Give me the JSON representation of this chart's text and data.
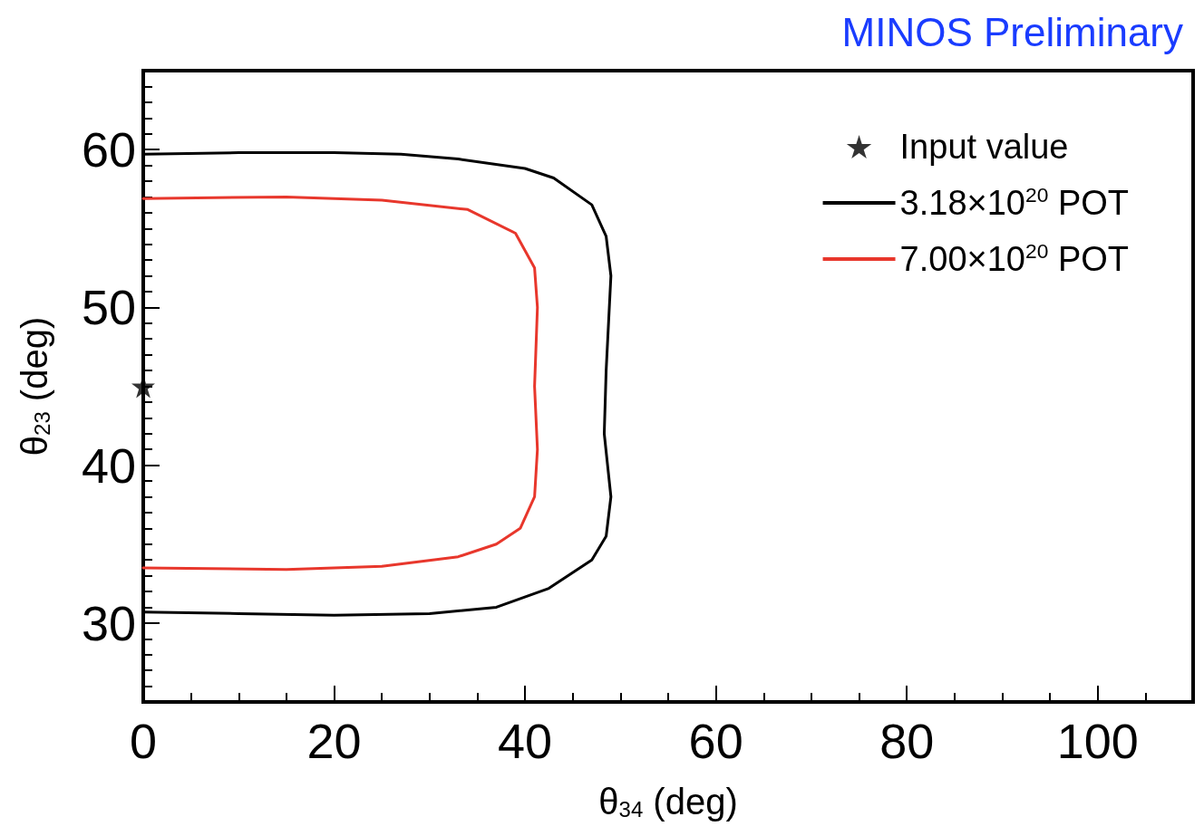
{
  "chart_data": {
    "type": "line",
    "title": "MINOS Preliminary",
    "xlabel": "θ$_{34}$ (deg)",
    "ylabel": "θ$_{23}$ (deg)",
    "xlim": [
      0,
      110
    ],
    "ylim": [
      25,
      65
    ],
    "xticks": [
      0,
      20,
      40,
      60,
      80,
      100
    ],
    "yticks": [
      30,
      40,
      50,
      60
    ],
    "grid": false,
    "legend": "top right",
    "line_style": "solid",
    "series": [
      {
        "name": "Input value",
        "type": "scatter",
        "marker": "star",
        "color": "#000000",
        "x": [
          0
        ],
        "values": [
          45
        ]
      },
      {
        "name": "3.18×10$^{20}$ POT",
        "marker": "none",
        "color": "#000000",
        "x": [
          0,
          10,
          20,
          27,
          33,
          40,
          43,
          47,
          48.5,
          49,
          48.5,
          48.3,
          49,
          48.5,
          47,
          42.5,
          37,
          30,
          20,
          10,
          0
        ],
        "values": [
          59.7,
          59.8,
          59.8,
          59.7,
          59.4,
          58.8,
          58.2,
          56.5,
          54.5,
          52,
          46,
          42,
          38,
          35.5,
          34,
          32.2,
          31,
          30.6,
          30.5,
          30.6,
          30.7
        ]
      },
      {
        "name": "7.00×10$^{20}$ POT",
        "marker": "none",
        "color": "#e8372c",
        "x": [
          0,
          15,
          25,
          34,
          39,
          41,
          41.3,
          41,
          41.3,
          41,
          39.5,
          37,
          33,
          25,
          15,
          0
        ],
        "values": [
          56.9,
          57,
          56.8,
          56.2,
          54.7,
          52.5,
          50,
          45,
          41,
          38,
          36,
          35,
          34.2,
          33.6,
          33.4,
          33.5
        ]
      }
    ]
  }
}
